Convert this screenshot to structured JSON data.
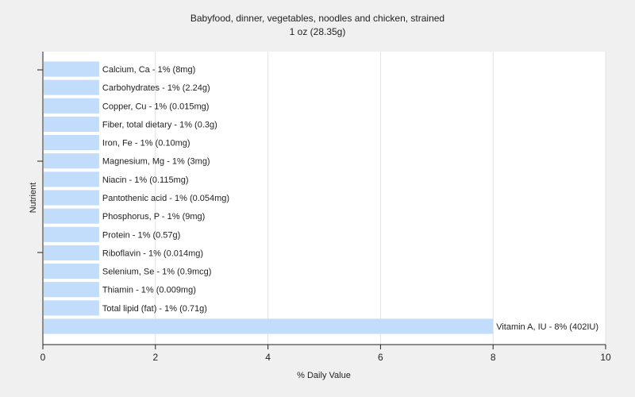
{
  "chart_data": {
    "type": "bar",
    "orientation": "horizontal",
    "title": "Babyfood, dinner, vegetables, noodles and chicken, strained",
    "subtitle": "1 oz (28.35g)",
    "xlabel": "% Daily Value",
    "ylabel": "Nutrient",
    "xlim": [
      0,
      10
    ],
    "xticks": [
      0,
      2,
      4,
      6,
      8,
      10
    ],
    "grid": true,
    "bar_color": "#c2dcfc",
    "categories": [
      "Calcium, Ca",
      "Carbohydrates",
      "Copper, Cu",
      "Fiber, total dietary",
      "Iron, Fe",
      "Magnesium, Mg",
      "Niacin",
      "Pantothenic acid",
      "Phosphorus, P",
      "Protein",
      "Riboflavin",
      "Selenium, Se",
      "Thiamin",
      "Total lipid (fat)",
      "Vitamin A, IU"
    ],
    "values": [
      1,
      1,
      1,
      1,
      1,
      1,
      1,
      1,
      1,
      1,
      1,
      1,
      1,
      1,
      8
    ],
    "labels": [
      "Calcium, Ca - 1% (8mg)",
      "Carbohydrates - 1% (2.24g)",
      "Copper, Cu - 1% (0.015mg)",
      "Fiber, total dietary - 1% (0.3g)",
      "Iron, Fe - 1% (0.10mg)",
      "Magnesium, Mg - 1% (3mg)",
      "Niacin - 1% (0.115mg)",
      "Pantothenic acid - 1% (0.054mg)",
      "Phosphorus, P - 1% (9mg)",
      "Protein - 1% (0.57g)",
      "Riboflavin - 1% (0.014mg)",
      "Selenium, Se - 1% (0.9mcg)",
      "Thiamin - 1% (0.009mg)",
      "Total lipid (fat) - 1% (0.71g)",
      "Vitamin A, IU - 8% (402IU)"
    ]
  }
}
